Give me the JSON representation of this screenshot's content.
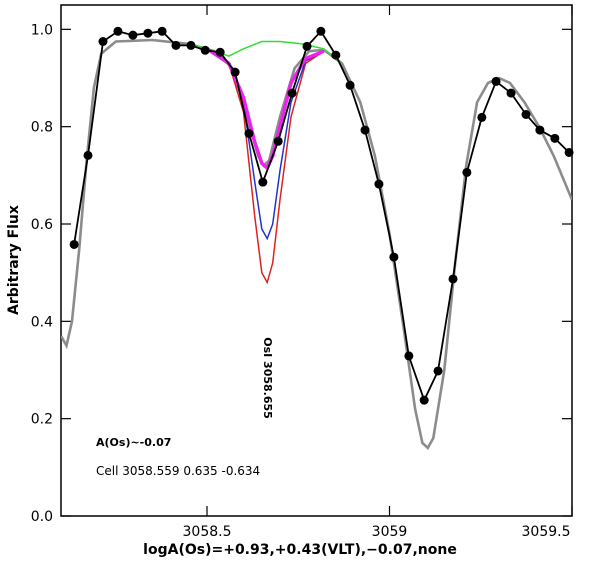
{
  "chart_data": {
    "type": "line",
    "x_label": "logA(Os)=+0.93,+0.43(VLT),−0.07,none",
    "y_label": "Arbitrary Flux",
    "annotations": [
      "OsI 3058.655",
      "A(Os)~-0.07",
      "Cell 3058.559 0.635 -0.634"
    ],
    "xlim": [
      3058.1,
      3059.5
    ],
    "ylim": [
      0,
      1.05
    ],
    "xticks": [
      3058.5,
      3059,
      3059.5
    ],
    "yticks": [
      {
        "value": 0,
        "label": "0.0"
      },
      0.2,
      0.4,
      0.6,
      0.8,
      {
        "value": 1,
        "label": "1.0"
      }
    ],
    "series": [
      {
        "color": "#8c8c8c",
        "marker": false,
        "x": [
          3058.1,
          3058.115,
          3058.13,
          3058.15,
          3058.17,
          3058.19,
          3058.21,
          3058.25,
          3058.35,
          3058.45,
          3058.52,
          3058.57,
          3058.61,
          3058.64,
          3058.655,
          3058.67,
          3058.7,
          3058.74,
          3058.78,
          3058.82,
          3058.87,
          3058.92,
          3058.96,
          3059.0,
          3059.04,
          3059.07,
          3059.09,
          3059.105,
          3059.12,
          3059.15,
          3059.18,
          3059.21,
          3059.24,
          3059.27,
          3059.3,
          3059.33,
          3059.37,
          3059.41,
          3059.45,
          3059.5
        ],
        "values": [
          0.37,
          0.35,
          0.4,
          0.55,
          0.73,
          0.88,
          0.95,
          0.975,
          0.978,
          0.97,
          0.955,
          0.92,
          0.82,
          0.74,
          0.72,
          0.73,
          0.82,
          0.92,
          0.955,
          0.958,
          0.93,
          0.85,
          0.74,
          0.58,
          0.38,
          0.22,
          0.15,
          0.14,
          0.16,
          0.3,
          0.52,
          0.72,
          0.85,
          0.89,
          0.9,
          0.89,
          0.85,
          0.8,
          0.74,
          0.65
        ]
      },
      {
        "color": "#33dd33",
        "marker": false,
        "x": [
          3058.45,
          3058.52,
          3058.56,
          3058.6,
          3058.65,
          3058.7,
          3058.76,
          3058.82,
          3058.87
        ],
        "values": [
          0.97,
          0.955,
          0.945,
          0.96,
          0.975,
          0.975,
          0.97,
          0.96,
          0.93
        ]
      },
      {
        "color": "#dd2222",
        "marker": false,
        "x": [
          3058.5,
          3058.56,
          3058.6,
          3058.63,
          3058.65,
          3058.665,
          3058.68,
          3058.7,
          3058.73,
          3058.77,
          3058.82
        ],
        "values": [
          0.96,
          0.93,
          0.83,
          0.62,
          0.5,
          0.48,
          0.52,
          0.65,
          0.82,
          0.93,
          0.955
        ]
      },
      {
        "color": "#2233cc",
        "marker": false,
        "x": [
          3058.5,
          3058.56,
          3058.6,
          3058.63,
          3058.65,
          3058.665,
          3058.68,
          3058.7,
          3058.73,
          3058.77,
          3058.82
        ],
        "values": [
          0.96,
          0.93,
          0.85,
          0.69,
          0.59,
          0.57,
          0.6,
          0.71,
          0.85,
          0.935,
          0.955
        ]
      },
      {
        "color": "#ee22ee",
        "marker": false,
        "x": [
          3058.5,
          3058.56,
          3058.6,
          3058.63,
          3058.65,
          3058.665,
          3058.68,
          3058.7,
          3058.73,
          3058.77,
          3058.82
        ],
        "values": [
          0.96,
          0.93,
          0.86,
          0.77,
          0.725,
          0.715,
          0.74,
          0.8,
          0.89,
          0.94,
          0.955
        ]
      },
      {
        "color": "#000000",
        "marker": true,
        "x": [
          3058.136,
          3058.174,
          3058.215,
          3058.256,
          3058.297,
          3058.338,
          3058.377,
          3058.415,
          3058.456,
          3058.495,
          3058.536,
          3058.577,
          3058.615,
          3058.653,
          3058.695,
          3058.733,
          3058.774,
          3058.812,
          3058.853,
          3058.892,
          3058.933,
          3058.971,
          3059.012,
          3059.053,
          3059.095,
          3059.133,
          3059.174,
          3059.212,
          3059.253,
          3059.292,
          3059.333,
          3059.374,
          3059.412,
          3059.453,
          3059.492
        ],
        "values": [
          0.558,
          0.741,
          0.975,
          0.996,
          0.988,
          0.992,
          0.996,
          0.967,
          0.967,
          0.957,
          0.953,
          0.912,
          0.786,
          0.686,
          0.77,
          0.869,
          0.965,
          0.996,
          0.947,
          0.885,
          0.793,
          0.682,
          0.532,
          0.329,
          0.238,
          0.298,
          0.487,
          0.706,
          0.819,
          0.893,
          0.869,
          0.825,
          0.793,
          0.776,
          0.747
        ]
      }
    ]
  }
}
